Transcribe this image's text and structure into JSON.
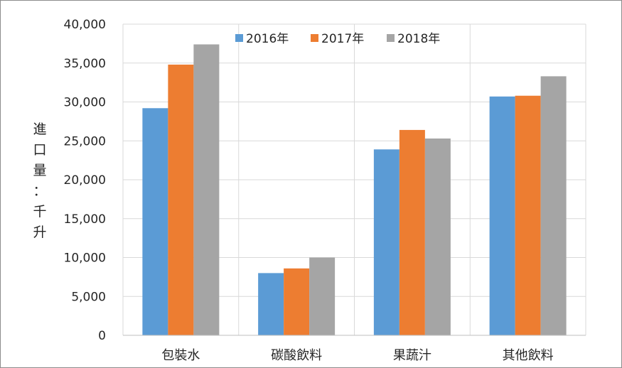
{
  "chart_data": {
    "type": "bar",
    "categories": [
      "包裝水",
      "碳酸飲料",
      "果蔬汁",
      "其他飲料"
    ],
    "series": [
      {
        "name": "2016年",
        "color": "#5b9bd5",
        "values": [
          29200,
          8000,
          23900,
          30700
        ]
      },
      {
        "name": "2017年",
        "color": "#ed7d31",
        "values": [
          34800,
          8600,
          26400,
          30800
        ]
      },
      {
        "name": "2018年",
        "color": "#a5a5a5",
        "values": [
          37400,
          10000,
          25300,
          33300
        ]
      }
    ],
    "y_ticks": [
      "0",
      "5,000",
      "10,000",
      "15,000",
      "20,000",
      "25,000",
      "30,000",
      "35,000",
      "40,000"
    ],
    "ylim": [
      0,
      40000
    ],
    "ylabel": "進口量：千升",
    "xlabel": "",
    "title": "",
    "grid": true,
    "legend_position": "top"
  }
}
